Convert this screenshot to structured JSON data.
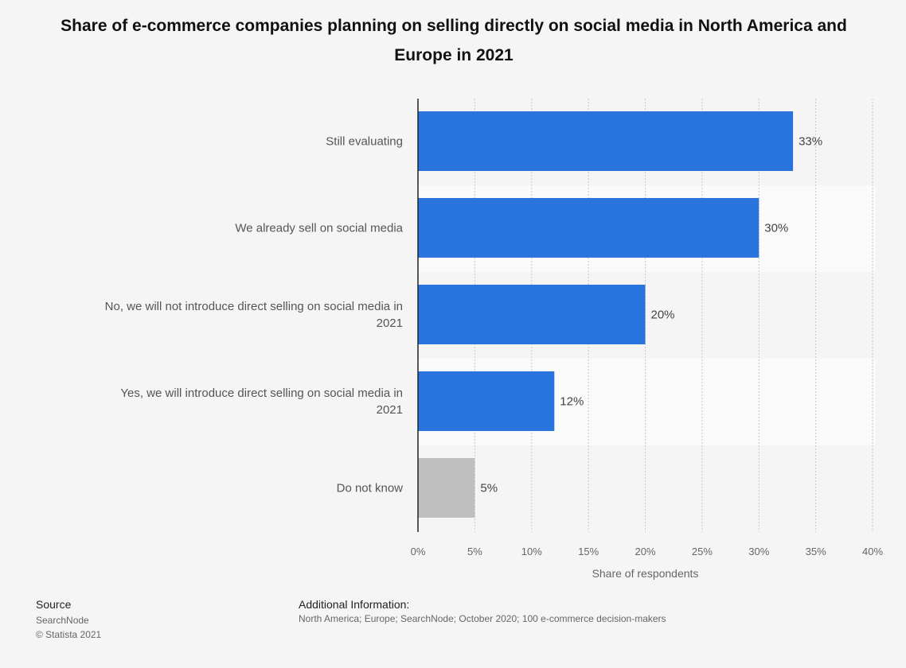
{
  "chart_data": {
    "type": "bar",
    "orientation": "horizontal",
    "title": "Share of e-commerce companies planning on selling directly on social media in North America and Europe in 2021",
    "categories": [
      "Still evaluating",
      "We already sell on social media",
      "No, we will not introduce direct selling on social media in 2021",
      "Yes, we will introduce direct selling on social media in 2021",
      "Do not know"
    ],
    "values": [
      33,
      30,
      20,
      12,
      5
    ],
    "value_labels": [
      "33%",
      "30%",
      "20%",
      "12%",
      "5%"
    ],
    "bar_colors": [
      "#2a74dd",
      "#2a74dd",
      "#2a74dd",
      "#2a74dd",
      "#bfbfbf"
    ],
    "xlabel": "Share of respondents",
    "ylabel": "",
    "xlim": [
      0,
      40
    ],
    "x_ticks": [
      "0%",
      "5%",
      "10%",
      "15%",
      "20%",
      "25%",
      "30%",
      "35%",
      "40%"
    ],
    "grid": true
  },
  "footer": {
    "source_heading": "Source",
    "source_name": "SearchNode",
    "copyright": "© Statista 2021",
    "additional_heading": "Additional Information:",
    "additional_text": "North America; Europe; SearchNode; October 2020; 100 e-commerce decision-makers"
  },
  "colors": {
    "background": "#f5f5f5",
    "band_alt": "#fafafa",
    "bar_primary": "#2a74dd",
    "bar_secondary": "#bfbfbf"
  }
}
